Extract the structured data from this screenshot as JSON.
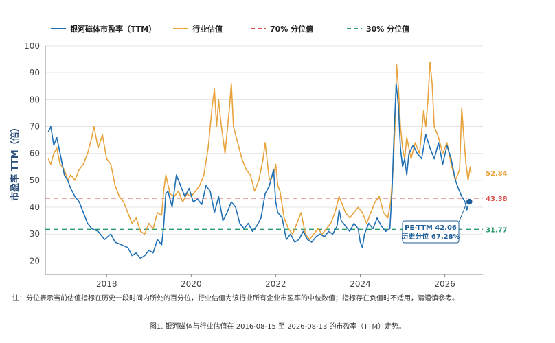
{
  "chart_data": {
    "type": "line",
    "ylabel": "市盈率 TTM（倍）",
    "ylim": [
      15,
      100
    ],
    "xlim": [
      2016.55,
      2026.9
    ],
    "x_ticks": [
      "2018",
      "2020",
      "2022",
      "2024",
      "2026"
    ],
    "y_ticks": [
      "20",
      "30",
      "40",
      "50",
      "60",
      "70",
      "80",
      "90",
      "100"
    ],
    "grid": "horizontal",
    "legend_position": "top-left",
    "series": [
      {
        "name": "银河磁体市盈率（TTM）",
        "color": "#1f6fb5",
        "points": [
          [
            2016.62,
            68
          ],
          [
            2016.68,
            70
          ],
          [
            2016.75,
            63
          ],
          [
            2016.82,
            66
          ],
          [
            2016.9,
            60
          ],
          [
            2017.0,
            52
          ],
          [
            2017.08,
            50
          ],
          [
            2017.15,
            47
          ],
          [
            2017.25,
            44
          ],
          [
            2017.35,
            42
          ],
          [
            2017.45,
            38
          ],
          [
            2017.55,
            34
          ],
          [
            2017.65,
            32
          ],
          [
            2017.8,
            31
          ],
          [
            2017.95,
            28
          ],
          [
            2018.1,
            30
          ],
          [
            2018.2,
            27
          ],
          [
            2018.35,
            26
          ],
          [
            2018.5,
            25
          ],
          [
            2018.6,
            22
          ],
          [
            2018.7,
            23
          ],
          [
            2018.8,
            21
          ],
          [
            2018.9,
            22
          ],
          [
            2019.0,
            24
          ],
          [
            2019.1,
            23
          ],
          [
            2019.2,
            28
          ],
          [
            2019.3,
            26
          ],
          [
            2019.35,
            33
          ],
          [
            2019.4,
            45
          ],
          [
            2019.45,
            46
          ],
          [
            2019.55,
            40
          ],
          [
            2019.65,
            52
          ],
          [
            2019.75,
            48
          ],
          [
            2019.85,
            44
          ],
          [
            2019.95,
            47
          ],
          [
            2020.05,
            42
          ],
          [
            2020.15,
            43
          ],
          [
            2020.25,
            41
          ],
          [
            2020.35,
            48
          ],
          [
            2020.45,
            46
          ],
          [
            2020.55,
            38
          ],
          [
            2020.65,
            44
          ],
          [
            2020.75,
            35
          ],
          [
            2020.85,
            38
          ],
          [
            2020.95,
            42
          ],
          [
            2021.05,
            40
          ],
          [
            2021.15,
            34
          ],
          [
            2021.25,
            32
          ],
          [
            2021.35,
            34
          ],
          [
            2021.45,
            31
          ],
          [
            2021.55,
            33
          ],
          [
            2021.65,
            36
          ],
          [
            2021.75,
            45
          ],
          [
            2021.85,
            48
          ],
          [
            2021.95,
            54
          ],
          [
            2022.0,
            42
          ],
          [
            2022.05,
            38
          ],
          [
            2022.15,
            36
          ],
          [
            2022.25,
            28
          ],
          [
            2022.35,
            30
          ],
          [
            2022.45,
            27
          ],
          [
            2022.55,
            28
          ],
          [
            2022.65,
            31
          ],
          [
            2022.75,
            28
          ],
          [
            2022.85,
            27
          ],
          [
            2022.95,
            29
          ],
          [
            2023.05,
            30
          ],
          [
            2023.15,
            29
          ],
          [
            2023.25,
            31
          ],
          [
            2023.35,
            30
          ],
          [
            2023.45,
            33
          ],
          [
            2023.5,
            39
          ],
          [
            2023.55,
            35
          ],
          [
            2023.65,
            33
          ],
          [
            2023.75,
            31
          ],
          [
            2023.85,
            34
          ],
          [
            2023.95,
            32
          ],
          [
            2024.0,
            27
          ],
          [
            2024.05,
            25
          ],
          [
            2024.1,
            30
          ],
          [
            2024.2,
            34
          ],
          [
            2024.3,
            32
          ],
          [
            2024.4,
            36
          ],
          [
            2024.5,
            33
          ],
          [
            2024.6,
            31
          ],
          [
            2024.7,
            32
          ],
          [
            2024.75,
            46
          ],
          [
            2024.8,
            68
          ],
          [
            2024.85,
            86
          ],
          [
            2024.9,
            78
          ],
          [
            2024.95,
            62
          ],
          [
            2025.0,
            55
          ],
          [
            2025.05,
            58
          ],
          [
            2025.1,
            52
          ],
          [
            2025.15,
            60
          ],
          [
            2025.25,
            63
          ],
          [
            2025.35,
            60
          ],
          [
            2025.45,
            58
          ],
          [
            2025.55,
            67
          ],
          [
            2025.65,
            62
          ],
          [
            2025.75,
            58
          ],
          [
            2025.85,
            64
          ],
          [
            2025.95,
            56
          ],
          [
            2026.05,
            63
          ],
          [
            2026.15,
            58
          ],
          [
            2026.25,
            50
          ],
          [
            2026.32,
            47
          ],
          [
            2026.4,
            44
          ],
          [
            2026.48,
            42
          ],
          [
            2026.52,
            39
          ],
          [
            2026.58,
            42.06
          ]
        ]
      },
      {
        "name": "行业估值",
        "color": "#e8a33d",
        "points": [
          [
            2016.62,
            58
          ],
          [
            2016.68,
            56
          ],
          [
            2016.75,
            60
          ],
          [
            2016.82,
            62
          ],
          [
            2016.9,
            56
          ],
          [
            2017.0,
            54
          ],
          [
            2017.08,
            50
          ],
          [
            2017.15,
            52
          ],
          [
            2017.25,
            50
          ],
          [
            2017.35,
            54
          ],
          [
            2017.45,
            56
          ],
          [
            2017.55,
            60
          ],
          [
            2017.65,
            66
          ],
          [
            2017.7,
            70
          ],
          [
            2017.8,
            62
          ],
          [
            2017.9,
            67
          ],
          [
            2018.0,
            58
          ],
          [
            2018.1,
            56
          ],
          [
            2018.2,
            48
          ],
          [
            2018.3,
            44
          ],
          [
            2018.4,
            42
          ],
          [
            2018.5,
            38
          ],
          [
            2018.6,
            34
          ],
          [
            2018.7,
            36
          ],
          [
            2018.8,
            31
          ],
          [
            2018.9,
            30
          ],
          [
            2019.0,
            34
          ],
          [
            2019.1,
            32
          ],
          [
            2019.2,
            38
          ],
          [
            2019.3,
            37
          ],
          [
            2019.35,
            46
          ],
          [
            2019.4,
            52
          ],
          [
            2019.5,
            45
          ],
          [
            2019.6,
            44
          ],
          [
            2019.7,
            46
          ],
          [
            2019.8,
            42
          ],
          [
            2019.9,
            45
          ],
          [
            2020.0,
            44
          ],
          [
            2020.1,
            46
          ],
          [
            2020.2,
            48
          ],
          [
            2020.3,
            52
          ],
          [
            2020.4,
            62
          ],
          [
            2020.5,
            78
          ],
          [
            2020.55,
            84
          ],
          [
            2020.6,
            70
          ],
          [
            2020.65,
            80
          ],
          [
            2020.7,
            72
          ],
          [
            2020.75,
            66
          ],
          [
            2020.8,
            60
          ],
          [
            2020.9,
            76
          ],
          [
            2020.95,
            86
          ],
          [
            2021.0,
            70
          ],
          [
            2021.1,
            64
          ],
          [
            2021.2,
            58
          ],
          [
            2021.3,
            54
          ],
          [
            2021.4,
            52
          ],
          [
            2021.5,
            46
          ],
          [
            2021.6,
            50
          ],
          [
            2021.7,
            58
          ],
          [
            2021.75,
            64
          ],
          [
            2021.85,
            50
          ],
          [
            2021.95,
            52
          ],
          [
            2022.0,
            56
          ],
          [
            2022.05,
            48
          ],
          [
            2022.1,
            46
          ],
          [
            2022.2,
            36
          ],
          [
            2022.3,
            32
          ],
          [
            2022.4,
            30
          ],
          [
            2022.5,
            34
          ],
          [
            2022.6,
            38
          ],
          [
            2022.7,
            30
          ],
          [
            2022.8,
            28
          ],
          [
            2022.9,
            30
          ],
          [
            2023.0,
            32
          ],
          [
            2023.1,
            30
          ],
          [
            2023.2,
            32
          ],
          [
            2023.3,
            34
          ],
          [
            2023.4,
            38
          ],
          [
            2023.5,
            44
          ],
          [
            2023.55,
            42
          ],
          [
            2023.65,
            38
          ],
          [
            2023.75,
            36
          ],
          [
            2023.85,
            38
          ],
          [
            2023.95,
            40
          ],
          [
            2024.05,
            38
          ],
          [
            2024.15,
            34
          ],
          [
            2024.25,
            38
          ],
          [
            2024.35,
            42
          ],
          [
            2024.45,
            44
          ],
          [
            2024.55,
            38
          ],
          [
            2024.65,
            36
          ],
          [
            2024.72,
            42
          ],
          [
            2024.78,
            55
          ],
          [
            2024.82,
            70
          ],
          [
            2024.86,
            93
          ],
          [
            2024.9,
            85
          ],
          [
            2024.95,
            70
          ],
          [
            2025.0,
            62
          ],
          [
            2025.05,
            58
          ],
          [
            2025.1,
            66
          ],
          [
            2025.2,
            58
          ],
          [
            2025.3,
            64
          ],
          [
            2025.4,
            60
          ],
          [
            2025.45,
            68
          ],
          [
            2025.5,
            76
          ],
          [
            2025.55,
            70
          ],
          [
            2025.6,
            80
          ],
          [
            2025.65,
            94
          ],
          [
            2025.7,
            86
          ],
          [
            2025.75,
            70
          ],
          [
            2025.85,
            66
          ],
          [
            2025.95,
            60
          ],
          [
            2026.05,
            64
          ],
          [
            2026.15,
            56
          ],
          [
            2026.25,
            50
          ],
          [
            2026.35,
            54
          ],
          [
            2026.4,
            77
          ],
          [
            2026.45,
            66
          ],
          [
            2026.5,
            56
          ],
          [
            2026.55,
            50
          ],
          [
            2026.6,
            55
          ],
          [
            2026.62,
            52.84
          ]
        ]
      }
    ],
    "reference_lines": [
      {
        "name": "70% 分位值",
        "value": 43.38,
        "label": "43.38",
        "color": "#d9534f"
      },
      {
        "name": "30% 分位值",
        "value": 31.77,
        "label": "31.77",
        "color": "#2a9d6f"
      }
    ],
    "end_labels": [
      {
        "value": 52.84,
        "label": "52.84",
        "color": "#e8a33d"
      }
    ],
    "annotation": {
      "x": 2026.58,
      "value": 42.06,
      "line1": "PE-TTM 42.06",
      "line2": "历史分位 67.28%"
    }
  },
  "note": "注：分位表示当前估值指标在历史一段时间内所处的百分位，行业估值为该行业所有企业市盈率的中位数值；指标存在负值时不适用，请谨慎参考。",
  "caption": "图1. 银河磁体与行业估值在 2016-08-15 至 2026-08-13 的市盈率（TTM）走势。"
}
